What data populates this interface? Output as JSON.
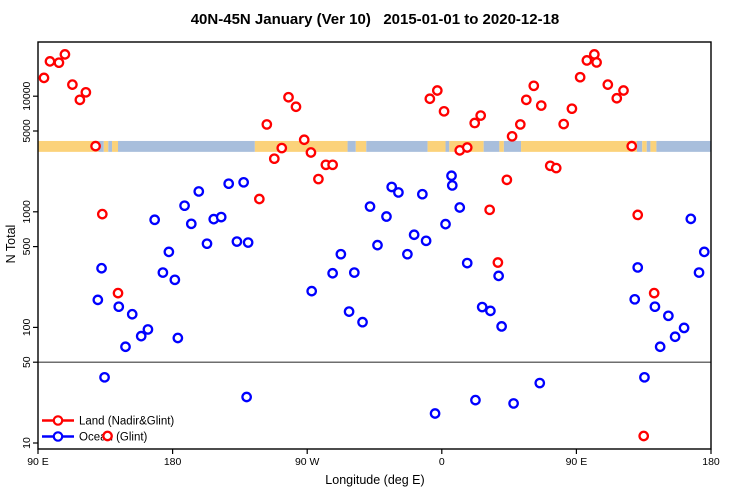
{
  "chart_data": {
    "type": "scatter",
    "title": "40N-45N January (Ver 10)   2015-01-01 to 2020-12-18",
    "xlabel": "Longitude (deg E)",
    "ylabel": "N Total",
    "x_axis": {
      "lim": [
        90,
        540
      ],
      "ticks": [
        90,
        180,
        270,
        360,
        450,
        540
      ],
      "tick_labels": [
        "90 E",
        "180",
        "90 W",
        "0",
        "90 E",
        "180"
      ]
    },
    "y_axis": {
      "scale": "log10",
      "lim": [
        10,
        30000
      ],
      "ticks": [
        10000,
        5000,
        1000,
        500,
        100,
        50,
        10
      ],
      "tick_labels": [
        "10000",
        "5000",
        "1000",
        "500",
        "100",
        "50",
        "10"
      ]
    },
    "reference_line_y": 50,
    "reference_line_color": "#6e6e6e",
    "map_band": {
      "n_top": 4100,
      "n_bottom": 3300,
      "land_color": "#FBD27A",
      "ocean_color": "#A8BEDC",
      "segments": [
        [
          90,
          130.5,
          "land"
        ],
        [
          130.5,
          134,
          "ocean"
        ],
        [
          134,
          137,
          "land"
        ],
        [
          137,
          139.5,
          "ocean"
        ],
        [
          139.5,
          143.5,
          "land"
        ],
        [
          143.5,
          235,
          "ocean"
        ],
        [
          235,
          297,
          "land"
        ],
        [
          297,
          302.5,
          "ocean"
        ],
        [
          302.5,
          309.5,
          "land"
        ],
        [
          309.5,
          350.5,
          "ocean"
        ],
        [
          350.5,
          362.5,
          "land"
        ],
        [
          362.5,
          365,
          "ocean"
        ],
        [
          365,
          388,
          "land"
        ],
        [
          388,
          398.5,
          "ocean"
        ],
        [
          398.5,
          401.5,
          "land"
        ],
        [
          401.5,
          413,
          "ocean"
        ],
        [
          413,
          490.5,
          "land"
        ],
        [
          490.5,
          494,
          "ocean"
        ],
        [
          494,
          497,
          "land"
        ],
        [
          497,
          499.5,
          "ocean"
        ],
        [
          499.5,
          503.5,
          "land"
        ],
        [
          503.5,
          540,
          "ocean"
        ]
      ]
    },
    "legend": {
      "position": "bottom-left",
      "entries": [
        "Land (Nadir&Glint)",
        "Ocean (Glint)"
      ]
    },
    "series": [
      {
        "name": "Land (Nadir&Glint)",
        "color": "#FF0000",
        "points": [
          [
            108,
            23000
          ],
          [
            98,
            20000
          ],
          [
            104,
            19500
          ],
          [
            94,
            14400
          ],
          [
            113,
            12600
          ],
          [
            122,
            10800
          ],
          [
            118,
            9300
          ],
          [
            128.5,
            3700
          ],
          [
            133,
            955
          ],
          [
            143.5,
            198
          ],
          [
            136.5,
            11.5
          ],
          [
            238,
            1290
          ],
          [
            243,
            5700
          ],
          [
            248,
            2880
          ],
          [
            253,
            3560
          ],
          [
            257.5,
            9800
          ],
          [
            262.5,
            8100
          ],
          [
            268,
            4200
          ],
          [
            272.5,
            3260
          ],
          [
            277.5,
            1920
          ],
          [
            282.5,
            2550
          ],
          [
            287,
            2550
          ],
          [
            352,
            9500
          ],
          [
            357,
            11200
          ],
          [
            361.5,
            7400
          ],
          [
            372,
            3400
          ],
          [
            377,
            3600
          ],
          [
            382,
            5860
          ],
          [
            386,
            6800
          ],
          [
            392,
            1040
          ],
          [
            397.5,
            364
          ],
          [
            403.5,
            1890
          ],
          [
            407,
            4500
          ],
          [
            412.5,
            5700
          ],
          [
            416.5,
            9300
          ],
          [
            421.5,
            12300
          ],
          [
            426.5,
            8300
          ],
          [
            432.5,
            2500
          ],
          [
            436.5,
            2390
          ],
          [
            441.5,
            5740
          ],
          [
            447,
            7800
          ],
          [
            452.5,
            14600
          ],
          [
            457,
            20400
          ],
          [
            462,
            23000
          ],
          [
            463.5,
            19600
          ],
          [
            471,
            12600
          ],
          [
            477,
            9600
          ],
          [
            481.5,
            11200
          ],
          [
            487,
            3700
          ],
          [
            491,
            940
          ],
          [
            495,
            11.5
          ],
          [
            502,
            198
          ]
        ]
      },
      {
        "name": "Ocean (Glint)",
        "color": "#0000FF",
        "points": [
          [
            130,
            173
          ],
          [
            132.5,
            325
          ],
          [
            134.5,
            37
          ],
          [
            144,
            151
          ],
          [
            148.5,
            68
          ],
          [
            153,
            130
          ],
          [
            159,
            84
          ],
          [
            163.5,
            96
          ],
          [
            168,
            853
          ],
          [
            173.5,
            298
          ],
          [
            177.5,
            450
          ],
          [
            181.5,
            258
          ],
          [
            183.5,
            81
          ],
          [
            188,
            1130
          ],
          [
            192.5,
            787
          ],
          [
            197.5,
            1500
          ],
          [
            203,
            530
          ],
          [
            207.5,
            864
          ],
          [
            212.5,
            900
          ],
          [
            217.5,
            1750
          ],
          [
            223,
            553
          ],
          [
            227.5,
            1800
          ],
          [
            229.5,
            25
          ],
          [
            230.5,
            542
          ],
          [
            273,
            206
          ],
          [
            287,
            294
          ],
          [
            292.5,
            430
          ],
          [
            298,
            137
          ],
          [
            301.5,
            298
          ],
          [
            307,
            111
          ],
          [
            312,
            1110
          ],
          [
            317,
            515
          ],
          [
            323,
            910
          ],
          [
            326.5,
            1640
          ],
          [
            331,
            1470
          ],
          [
            337,
            430
          ],
          [
            341.5,
            633
          ],
          [
            347,
            1420
          ],
          [
            349.5,
            561
          ],
          [
            355.5,
            18
          ],
          [
            362.5,
            782
          ],
          [
            366.5,
            2050
          ],
          [
            367,
            1690
          ],
          [
            372,
            1090
          ],
          [
            377,
            360
          ],
          [
            382.5,
            23.5
          ],
          [
            387,
            150
          ],
          [
            392.5,
            139
          ],
          [
            398,
            279
          ],
          [
            400,
            102
          ],
          [
            408,
            22
          ],
          [
            425.5,
            33
          ],
          [
            489,
            175
          ],
          [
            491,
            330
          ],
          [
            495.5,
            37
          ],
          [
            502.5,
            151
          ],
          [
            506,
            68
          ],
          [
            511.5,
            126
          ],
          [
            516,
            83
          ],
          [
            522,
            99
          ],
          [
            526.5,
            869
          ],
          [
            532,
            298
          ],
          [
            535.5,
            450
          ]
        ]
      }
    ]
  }
}
